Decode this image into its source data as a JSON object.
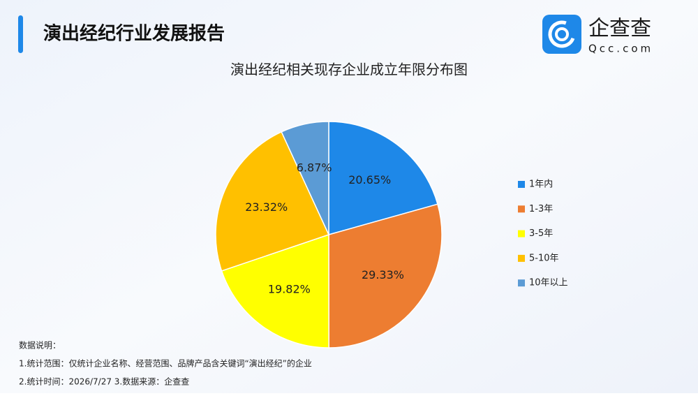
{
  "header": {
    "title": "演出经纪行业发展报告"
  },
  "logo": {
    "name": "企查查",
    "domain": "Qcc.com"
  },
  "chart_data": {
    "type": "pie",
    "title": "演出经纪相关现存企业成立年限分布图",
    "categories": [
      "1年内",
      "1-3年",
      "3-5年",
      "5-10年",
      "10年以上"
    ],
    "values": [
      20.65,
      29.33,
      19.82,
      23.32,
      6.87
    ],
    "value_labels": [
      "20.65%",
      "29.33%",
      "19.82%",
      "23.32%",
      "6.87%"
    ],
    "colors": [
      "#1e88e8",
      "#ed7d31",
      "#ffff00",
      "#ffc000",
      "#5b9bd5"
    ],
    "legend": "right"
  },
  "notes": {
    "title": "数据说明：",
    "lines": [
      "1.统计范围：仅统计企业名称、经营范围、品牌产品含关键词“演出经纪”的企业",
      "2.统计时间：2026/7/27  3.数据来源：企查查"
    ]
  }
}
